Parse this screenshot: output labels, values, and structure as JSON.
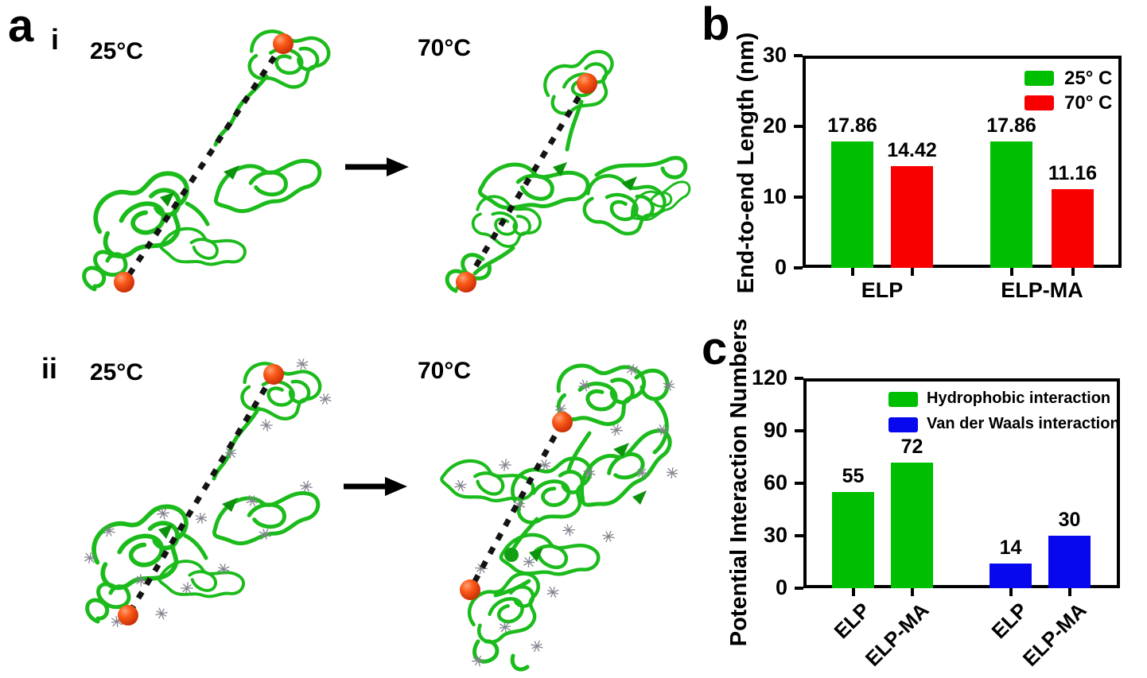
{
  "panel_a": {
    "label": "a",
    "rows": [
      {
        "sub": "i",
        "left_temp": "25°C",
        "right_temp": "70°C"
      },
      {
        "sub": "ii",
        "left_temp": "25°C",
        "right_temp": "70°C"
      }
    ]
  },
  "panel_b": {
    "label": "b"
  },
  "panel_c": {
    "label": "c"
  },
  "colors": {
    "green": "#00BE00",
    "red": "#F80000",
    "blue": "#0808EE",
    "ribbon": "#1CBB1C",
    "ribbon_dark": "#0C930C",
    "sphere": "#F1440E",
    "dash": "#131313"
  },
  "chart_data": [
    {
      "id": "b",
      "type": "bar",
      "title": "",
      "ylabel": "End-to-end Length (nm)",
      "xlabel": "",
      "ylim": [
        0,
        30
      ],
      "yticks": [
        0,
        10,
        20,
        30
      ],
      "grid": false,
      "legend_position": "top-right-inside",
      "legend": [
        {
          "label": "25° C",
          "color": "green"
        },
        {
          "label": "70° C",
          "color": "red"
        }
      ],
      "categories": [
        "ELP",
        "ELP-MA"
      ],
      "series": [
        {
          "name": "25° C",
          "color": "green",
          "values": [
            17.86,
            17.86
          ]
        },
        {
          "name": "70° C",
          "color": "red",
          "values": [
            14.42,
            11.16
          ]
        }
      ]
    },
    {
      "id": "c",
      "type": "bar",
      "title": "",
      "ylabel": "Potential Interaction Numbers",
      "xlabel": "",
      "ylim": [
        0,
        120
      ],
      "yticks": [
        0,
        30,
        60,
        90,
        120
      ],
      "grid": false,
      "legend_position": "top-inside",
      "legend": [
        {
          "label": "Hydrophobic interaction",
          "color": "green"
        },
        {
          "label": "Van der Waals interaction",
          "color": "blue"
        }
      ],
      "bars": [
        {
          "category": "ELP",
          "value": 55,
          "color": "green"
        },
        {
          "category": "ELP-MA",
          "value": 72,
          "color": "green"
        },
        {
          "category": "ELP",
          "value": 14,
          "color": "blue"
        },
        {
          "category": "ELP-MA",
          "value": 30,
          "color": "blue"
        }
      ],
      "xtick_rotation_deg": -45
    }
  ]
}
